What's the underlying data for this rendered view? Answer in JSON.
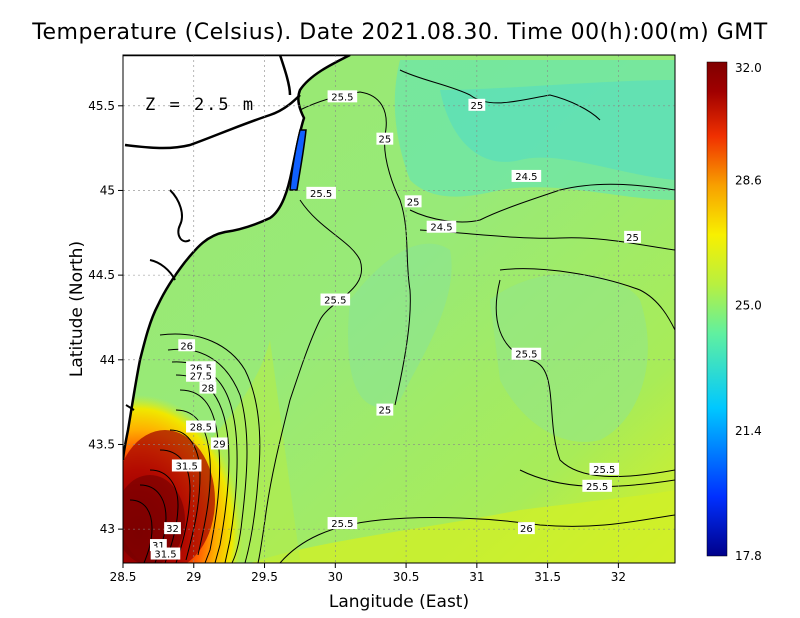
{
  "title": "Temperature (Celsius). Date 2021.08.30. Time 00(h):00(m) GMT",
  "depth_label": "Z = 2.5 m",
  "x_axis": {
    "label": "Langitude (East)",
    "ticks": [
      "28.5",
      "29",
      "29.5",
      "30",
      "30.5",
      "31",
      "31.5",
      "32"
    ],
    "range": [
      28.5,
      32.4
    ]
  },
  "y_axis": {
    "label": "Latitude (North)",
    "ticks": [
      "43",
      "43.5",
      "44",
      "44.5",
      "45",
      "45.5"
    ],
    "range": [
      42.8,
      45.8
    ]
  },
  "colorbar": {
    "ticks": [
      "32.0",
      "28.6",
      "25.0",
      "21.4",
      "17.8"
    ],
    "min": 17.8,
    "max": 32.0,
    "colors": [
      "#00008a",
      "#0030ff",
      "#00c8ff",
      "#60f0a0",
      "#b8f040",
      "#f8f000",
      "#f8a000",
      "#f03000",
      "#a00000",
      "#800000"
    ]
  },
  "contour_labels": [
    {
      "text": "25.5",
      "lon": 30.05,
      "lat": 45.55
    },
    {
      "text": "25",
      "lon": 31.0,
      "lat": 45.5
    },
    {
      "text": "25",
      "lon": 30.35,
      "lat": 45.3
    },
    {
      "text": "24.5",
      "lon": 31.35,
      "lat": 45.08
    },
    {
      "text": "25.5",
      "lon": 29.9,
      "lat": 44.98
    },
    {
      "text": "25",
      "lon": 30.55,
      "lat": 44.93
    },
    {
      "text": "24.5",
      "lon": 30.75,
      "lat": 44.78
    },
    {
      "text": "25",
      "lon": 32.1,
      "lat": 44.72
    },
    {
      "text": "25.5",
      "lon": 30.0,
      "lat": 44.35
    },
    {
      "text": "25.5",
      "lon": 31.35,
      "lat": 44.03
    },
    {
      "text": "25",
      "lon": 30.35,
      "lat": 43.7
    },
    {
      "text": "26",
      "lon": 28.95,
      "lat": 44.08
    },
    {
      "text": "26.5",
      "lon": 29.05,
      "lat": 43.95
    },
    {
      "text": "27.5",
      "lon": 29.05,
      "lat": 43.9
    },
    {
      "text": "28",
      "lon": 29.1,
      "lat": 43.83
    },
    {
      "text": "28.5",
      "lon": 29.05,
      "lat": 43.6
    },
    {
      "text": "29",
      "lon": 29.18,
      "lat": 43.5
    },
    {
      "text": "31.5",
      "lon": 28.95,
      "lat": 43.37
    },
    {
      "text": "25.5",
      "lon": 31.9,
      "lat": 43.35
    },
    {
      "text": "25.5",
      "lon": 31.85,
      "lat": 43.25
    },
    {
      "text": "25.5",
      "lon": 30.05,
      "lat": 43.03
    },
    {
      "text": "26",
      "lon": 31.35,
      "lat": 43.0
    },
    {
      "text": "32",
      "lon": 28.85,
      "lat": 43.0
    },
    {
      "text": "31",
      "lon": 28.75,
      "lat": 42.9
    },
    {
      "text": "31.5",
      "lon": 28.8,
      "lat": 42.85
    }
  ]
}
